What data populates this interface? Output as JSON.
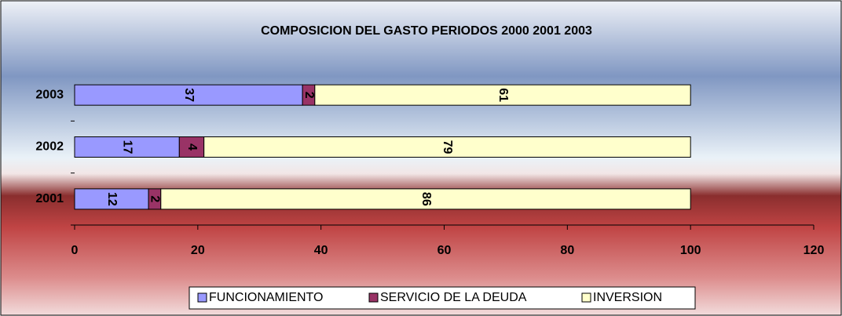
{
  "chart_data": {
    "type": "stacked-bar-horizontal",
    "title": "COMPOSICION  DEL GASTO PERIODOS 2000  2001  2003",
    "categories": [
      "2001",
      "2002",
      "2003"
    ],
    "series": [
      {
        "name": "FUNCIONAMIENTO",
        "color": "#9999ff",
        "values": [
          12,
          17,
          37
        ]
      },
      {
        "name": "SERVICIO DE LA DEUDA",
        "color": "#993366",
        "values": [
          2,
          4,
          2
        ]
      },
      {
        "name": "INVERSION",
        "color": "#ffffcc",
        "values": [
          86,
          79,
          61
        ]
      }
    ],
    "xlim": [
      0,
      120
    ],
    "xticks": [
      0,
      20,
      40,
      60,
      80,
      100,
      120
    ],
    "legend": "bottom"
  }
}
